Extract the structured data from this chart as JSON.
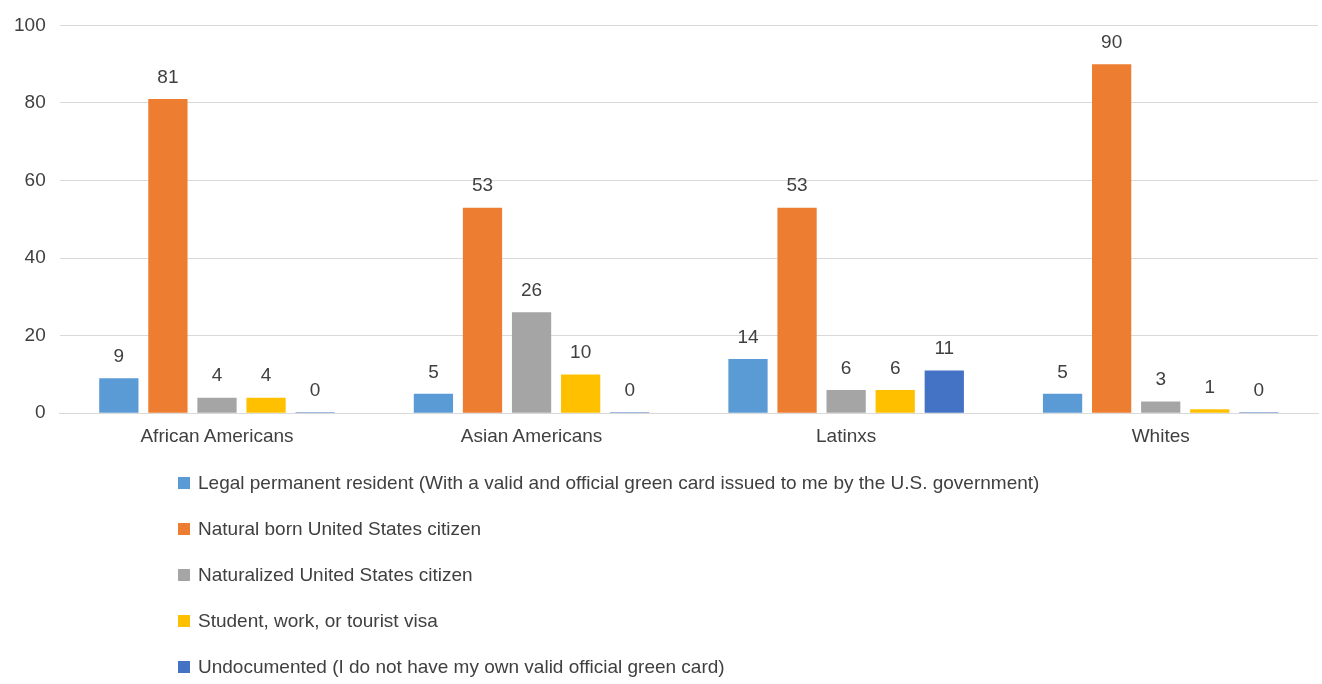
{
  "chart_data": {
    "type": "bar",
    "categories": [
      "African Americans",
      "Asian Americans",
      "Latinxs",
      "Whites"
    ],
    "series": [
      {
        "name": "Legal permanent resident (With a valid and official green card issued to me by the U.S. government)",
        "color": "#5b9bd5",
        "values": [
          9,
          5,
          14,
          5
        ]
      },
      {
        "name": "Natural born United States citizen",
        "color": "#ed7d31",
        "values": [
          81,
          53,
          53,
          90
        ]
      },
      {
        "name": "Naturalized United States citizen",
        "color": "#a5a5a5",
        "values": [
          4,
          26,
          6,
          3
        ]
      },
      {
        "name": "Student, work, or tourist visa",
        "color": "#ffc000",
        "values": [
          4,
          10,
          6,
          1
        ]
      },
      {
        "name": "Undocumented (I do not have my own valid official green card)",
        "color": "#4472c4",
        "values": [
          0,
          0,
          11,
          0
        ]
      }
    ],
    "ylim": [
      0,
      100
    ],
    "yticks": [
      0,
      20,
      40,
      60,
      80,
      100
    ],
    "grid": "y",
    "legend": "bottom",
    "data_labels": true
  }
}
